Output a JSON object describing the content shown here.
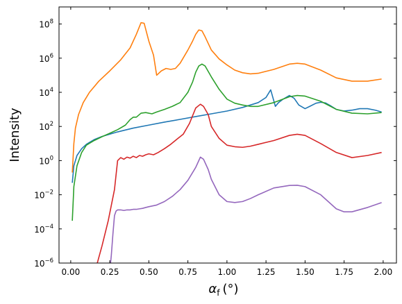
{
  "chart_data": {
    "type": "line",
    "title": "",
    "xlabel": "α",
    "xlabel_sub": "f",
    "xlabel_unit": "(°)",
    "ylabel": "Intensity",
    "xlim": [
      -0.075,
      2.085
    ],
    "ylim": [
      1e-06,
      1000000000.0
    ],
    "yscale": "log",
    "grid": false,
    "legend": "none",
    "xticks": [
      0.0,
      0.25,
      0.5,
      0.75,
      1.0,
      1.25,
      1.5,
      1.75,
      2.0
    ],
    "xtick_labels": [
      "0.00",
      "0.25",
      "0.50",
      "0.75",
      "1.00",
      "1.25",
      "1.50",
      "1.75",
      "2.00"
    ],
    "yticks": [
      {
        "value": 1e-06,
        "base": "10",
        "exp": "−6"
      },
      {
        "value": 0.0001,
        "base": "10",
        "exp": "−4"
      },
      {
        "value": 0.01,
        "base": "10",
        "exp": "−2"
      },
      {
        "value": 1,
        "base": "10",
        "exp": "0"
      },
      {
        "value": 100.0,
        "base": "10",
        "exp": "2"
      },
      {
        "value": 10000.0,
        "base": "10",
        "exp": "4"
      },
      {
        "value": 1000000.0,
        "base": "10",
        "exp": "6"
      },
      {
        "value": 100000000.0,
        "base": "10",
        "exp": "8"
      }
    ],
    "series": [
      {
        "color": "#1f77b4",
        "x": [
          0.01,
          0.02,
          0.04,
          0.07,
          0.1,
          0.15,
          0.2,
          0.3,
          0.4,
          0.5,
          0.6,
          0.7,
          0.8,
          0.9,
          1.0,
          1.1,
          1.2,
          1.25,
          1.28,
          1.31,
          1.33,
          1.36,
          1.4,
          1.43,
          1.46,
          1.5,
          1.53,
          1.57,
          1.6,
          1.63,
          1.66,
          1.7,
          1.75,
          1.8,
          1.85,
          1.9,
          1.95,
          1.99
        ],
        "y": [
          0.05,
          0.5,
          2,
          5,
          9,
          17,
          26,
          48,
          80,
          120,
          180,
          260,
          380,
          550,
          800,
          1300,
          2500,
          5000,
          14000,
          1500,
          2500,
          4000,
          6500,
          4500,
          1800,
          1100,
          1500,
          2300,
          2600,
          2400,
          1700,
          1000,
          800,
          900,
          1100,
          1100,
          900,
          700
        ]
      },
      {
        "color": "#ff7f0e",
        "x": [
          0.01,
          0.02,
          0.03,
          0.05,
          0.08,
          0.12,
          0.18,
          0.25,
          0.32,
          0.38,
          0.42,
          0.45,
          0.47,
          0.5,
          0.53,
          0.55,
          0.58,
          0.61,
          0.64,
          0.67,
          0.7,
          0.75,
          0.78,
          0.8,
          0.82,
          0.84,
          0.86,
          0.9,
          0.95,
          1.0,
          1.05,
          1.1,
          1.15,
          1.2,
          1.3,
          1.4,
          1.45,
          1.5,
          1.6,
          1.7,
          1.8,
          1.9,
          1.99
        ],
        "y": [
          0.2,
          10,
          80,
          500,
          2500,
          10000,
          45000,
          180000,
          800000,
          4000000,
          25000000,
          120000000,
          110000000,
          10000000,
          1500000,
          100000,
          180000,
          250000,
          220000,
          250000,
          500000,
          3000000,
          10000000,
          25000000,
          45000000,
          40000000,
          18000000,
          3000000,
          900000,
          400000,
          200000,
          140000,
          120000,
          130000,
          220000,
          450000,
          500000,
          450000,
          200000,
          70000,
          45000,
          45000,
          60000
        ]
      },
      {
        "color": "#2ca02c",
        "x": [
          0.01,
          0.02,
          0.04,
          0.07,
          0.1,
          0.15,
          0.2,
          0.25,
          0.3,
          0.35,
          0.38,
          0.4,
          0.42,
          0.45,
          0.48,
          0.52,
          0.55,
          0.6,
          0.65,
          0.7,
          0.75,
          0.78,
          0.8,
          0.82,
          0.84,
          0.86,
          0.9,
          0.95,
          1.0,
          1.05,
          1.1,
          1.15,
          1.2,
          1.3,
          1.4,
          1.45,
          1.5,
          1.6,
          1.7,
          1.8,
          1.9,
          1.99
        ],
        "y": [
          0.0003,
          0.03,
          0.5,
          3,
          8,
          15,
          25,
          40,
          65,
          120,
          250,
          350,
          350,
          600,
          650,
          550,
          700,
          1000,
          1500,
          2500,
          10000,
          40000,
          150000,
          350000,
          450000,
          350000,
          80000,
          15000,
          4000,
          2300,
          1800,
          1500,
          1500,
          2500,
          5500,
          6500,
          6000,
          3000,
          1000,
          600,
          550,
          650
        ]
      },
      {
        "color": "#d62728",
        "x": [
          0.17,
          0.2,
          0.24,
          0.28,
          0.3,
          0.32,
          0.34,
          0.36,
          0.38,
          0.4,
          0.42,
          0.44,
          0.46,
          0.48,
          0.5,
          0.53,
          0.56,
          0.6,
          0.64,
          0.68,
          0.72,
          0.76,
          0.8,
          0.83,
          0.85,
          0.88,
          0.9,
          0.95,
          1.0,
          1.05,
          1.1,
          1.15,
          1.2,
          1.3,
          1.4,
          1.45,
          1.5,
          1.6,
          1.7,
          1.8,
          1.9,
          1.99
        ],
        "y": [
          1e-06,
          1e-05,
          0.0003,
          0.02,
          1,
          1.5,
          1.2,
          1.6,
          1.4,
          1.8,
          1.5,
          2,
          1.8,
          2.2,
          2.5,
          2.2,
          3,
          5,
          9,
          18,
          35,
          150,
          1200,
          2000,
          1500,
          500,
          100,
          20,
          8,
          6.5,
          6,
          7,
          9,
          15,
          30,
          35,
          30,
          10,
          3,
          1.5,
          2,
          3
        ]
      },
      {
        "color": "#9467bd",
        "x": [
          0.255,
          0.26,
          0.27,
          0.28,
          0.29,
          0.3,
          0.32,
          0.34,
          0.36,
          0.38,
          0.4,
          0.42,
          0.44,
          0.46,
          0.48,
          0.5,
          0.55,
          0.6,
          0.65,
          0.7,
          0.75,
          0.8,
          0.83,
          0.85,
          0.88,
          0.9,
          0.95,
          1.0,
          1.05,
          1.1,
          1.15,
          1.2,
          1.3,
          1.4,
          1.45,
          1.5,
          1.6,
          1.7,
          1.75,
          1.8,
          1.9,
          1.99
        ],
        "y": [
          1e-06,
          3e-06,
          5e-05,
          0.0006,
          0.0011,
          0.0013,
          0.0013,
          0.0012,
          0.0013,
          0.0013,
          0.0014,
          0.0014,
          0.0015,
          0.0016,
          0.0018,
          0.002,
          0.0025,
          0.004,
          0.008,
          0.02,
          0.07,
          0.4,
          1.6,
          1.2,
          0.3,
          0.08,
          0.01,
          0.004,
          0.0035,
          0.004,
          0.006,
          0.01,
          0.025,
          0.035,
          0.036,
          0.03,
          0.01,
          0.0015,
          0.001,
          0.001,
          0.0018,
          0.0035
        ]
      }
    ]
  }
}
